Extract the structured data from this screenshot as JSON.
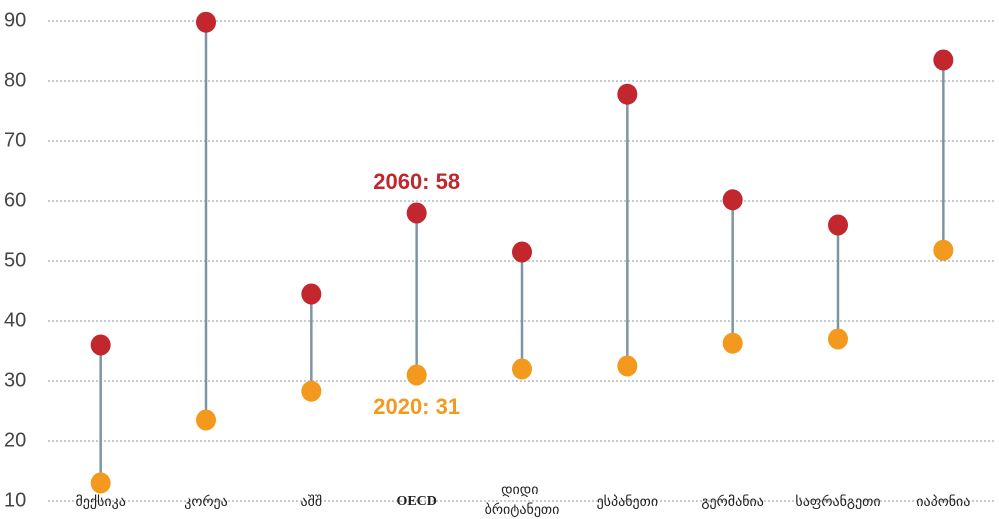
{
  "chart_data": {
    "type": "dumbbell",
    "categories": [
      "მექსიკა",
      "კორეა",
      "აშშ",
      "OECD",
      "დიდი ბრიტანეთი",
      "ესპანეთი",
      "გერმანია",
      "საფრანგეთი",
      "იაპონია"
    ],
    "series": [
      {
        "color": "#f39a1e",
        "values": [
          13,
          23.5,
          28.3,
          31,
          32,
          32.5,
          36.3,
          37,
          51.8
        ]
      },
      {
        "color": "#c1272d",
        "values": [
          36,
          89.8,
          44.5,
          58,
          51.5,
          77.8,
          60.2,
          56,
          83.5
        ]
      }
    ],
    "connector_color": "#7d96a4",
    "annotations": [
      "2020: 31",
      "2060: 58"
    ],
    "ylim": [
      10,
      90
    ],
    "yticks": [
      10,
      20,
      30,
      40,
      50,
      60,
      70,
      80,
      90
    ],
    "grid": true
  }
}
